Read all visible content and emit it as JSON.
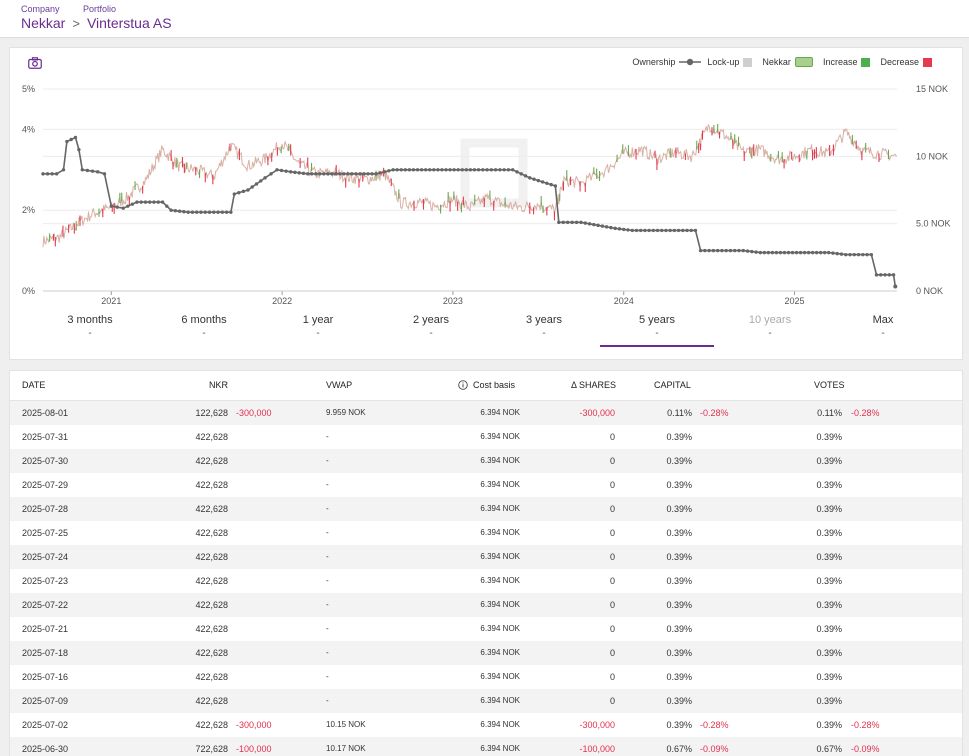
{
  "breadcrumb": {
    "company_label": "Company",
    "portfolio_label": "Portfolio",
    "company": "Nekkar",
    "separator": ">",
    "portfolio": "Vinterstua AS"
  },
  "legend": {
    "ownership": "Ownership",
    "lockup": "Lock-up",
    "nekkar": "Nekkar",
    "increase": "Increase",
    "decrease": "Decrease"
  },
  "colors": {
    "accent": "#6a2c91",
    "increase": "#4caf50",
    "decrease": "#e53950",
    "ownership_line": "#666666"
  },
  "chart_data": {
    "type": "line",
    "y_left": {
      "ticks": [
        "0%",
        "2%",
        "4%",
        "5%"
      ],
      "range": [
        0,
        5
      ]
    },
    "y_right": {
      "ticks": [
        "0 NOK",
        "5.0 NOK",
        "10 NOK",
        "15 NOK"
      ],
      "range": [
        0,
        15
      ]
    },
    "x_ticks": [
      "2021",
      "2022",
      "2023",
      "2024",
      "2025"
    ],
    "x_range": [
      2020.6,
      2025.6
    ],
    "grid": true,
    "series": [
      {
        "name": "Ownership",
        "axis": "left",
        "points": [
          [
            2020.6,
            2.9
          ],
          [
            2020.68,
            2.9
          ],
          [
            2020.72,
            3.0
          ],
          [
            2020.74,
            3.7
          ],
          [
            2020.79,
            3.8
          ],
          [
            2020.81,
            3.5
          ],
          [
            2020.83,
            3.0
          ],
          [
            2020.92,
            2.95
          ],
          [
            2020.96,
            2.9
          ],
          [
            2021.0,
            2.1
          ],
          [
            2021.07,
            2.05
          ],
          [
            2021.15,
            2.2
          ],
          [
            2021.3,
            2.2
          ],
          [
            2021.35,
            2.0
          ],
          [
            2021.45,
            1.95
          ],
          [
            2021.7,
            1.95
          ],
          [
            2021.72,
            2.4
          ],
          [
            2021.8,
            2.5
          ],
          [
            2021.9,
            2.8
          ],
          [
            2021.97,
            3.0
          ],
          [
            2022.05,
            2.95
          ],
          [
            2022.15,
            2.9
          ],
          [
            2022.55,
            2.9
          ],
          [
            2022.65,
            3.0
          ],
          [
            2023.15,
            3.0
          ],
          [
            2023.35,
            3.0
          ],
          [
            2023.45,
            2.8
          ],
          [
            2023.6,
            2.6
          ],
          [
            2023.62,
            1.7
          ],
          [
            2023.75,
            1.7
          ],
          [
            2023.95,
            1.55
          ],
          [
            2024.05,
            1.5
          ],
          [
            2024.42,
            1.5
          ],
          [
            2024.45,
            1.0
          ],
          [
            2024.7,
            1.0
          ],
          [
            2024.8,
            0.95
          ],
          [
            2025.2,
            0.95
          ],
          [
            2025.3,
            0.9
          ],
          [
            2025.45,
            0.9
          ],
          [
            2025.48,
            0.4
          ],
          [
            2025.58,
            0.4
          ],
          [
            2025.59,
            0.11
          ]
        ]
      },
      {
        "name": "Nekkar",
        "axis": "right",
        "points": [
          [
            2020.6,
            3.7
          ],
          [
            2020.7,
            4.0
          ],
          [
            2020.8,
            5.0
          ],
          [
            2020.9,
            5.8
          ],
          [
            2021.0,
            6.2
          ],
          [
            2021.1,
            7.0
          ],
          [
            2021.2,
            8.2
          ],
          [
            2021.3,
            10.5
          ],
          [
            2021.4,
            9.2
          ],
          [
            2021.5,
            9.0
          ],
          [
            2021.6,
            8.5
          ],
          [
            2021.7,
            10.8
          ],
          [
            2021.8,
            9.3
          ],
          [
            2021.9,
            9.8
          ],
          [
            2022.0,
            11.0
          ],
          [
            2022.1,
            9.4
          ],
          [
            2022.2,
            8.7
          ],
          [
            2022.3,
            8.8
          ],
          [
            2022.4,
            8.4
          ],
          [
            2022.5,
            8.3
          ],
          [
            2022.6,
            8.7
          ],
          [
            2022.7,
            6.5
          ],
          [
            2022.8,
            6.6
          ],
          [
            2022.9,
            6.3
          ],
          [
            2023.0,
            6.8
          ],
          [
            2023.1,
            6.2
          ],
          [
            2023.2,
            6.9
          ],
          [
            2023.3,
            6.4
          ],
          [
            2023.4,
            6.2
          ],
          [
            2023.5,
            6.4
          ],
          [
            2023.6,
            6.0
          ],
          [
            2023.65,
            8.2
          ],
          [
            2023.75,
            8.0
          ],
          [
            2023.9,
            9.0
          ],
          [
            2024.0,
            10.2
          ],
          [
            2024.1,
            10.5
          ],
          [
            2024.2,
            9.8
          ],
          [
            2024.3,
            10.3
          ],
          [
            2024.4,
            10.0
          ],
          [
            2024.5,
            12.3
          ],
          [
            2024.6,
            11.5
          ],
          [
            2024.7,
            10.3
          ],
          [
            2024.8,
            10.5
          ],
          [
            2024.9,
            9.8
          ],
          [
            2025.0,
            10.0
          ],
          [
            2025.1,
            10.5
          ],
          [
            2025.2,
            10.2
          ],
          [
            2025.3,
            11.8
          ],
          [
            2025.4,
            10.4
          ],
          [
            2025.5,
            10.2
          ],
          [
            2025.6,
            10.0
          ]
        ]
      }
    ]
  },
  "ranges": [
    {
      "label": "3 months",
      "value": "-",
      "active": false,
      "disabled": false
    },
    {
      "label": "6 months",
      "value": "-",
      "active": false,
      "disabled": false
    },
    {
      "label": "1 year",
      "value": "-",
      "active": false,
      "disabled": false
    },
    {
      "label": "2 years",
      "value": "-",
      "active": false,
      "disabled": false
    },
    {
      "label": "3 years",
      "value": "-",
      "active": false,
      "disabled": false
    },
    {
      "label": "5 years",
      "value": "-",
      "active": true,
      "disabled": false
    },
    {
      "label": "10 years",
      "value": "-",
      "active": false,
      "disabled": true
    },
    {
      "label": "Max",
      "value": "-",
      "active": false,
      "disabled": false
    }
  ],
  "table": {
    "headers": {
      "date": "DATE",
      "nkr": "NKR",
      "vwap": "VWAP",
      "cost_basis": "Cost basis",
      "delta_shares": "Δ SHARES",
      "capital": "CAPITAL",
      "votes": "VOTES"
    },
    "rows": [
      {
        "date": "2025-08-01",
        "nkr": "122,628",
        "nkr_change": "-300,000",
        "vwap": "9.959 NOK",
        "cost": "6.394 NOK",
        "delta": "-300,000",
        "capital": "0.11%",
        "capital_change": "-0.28%",
        "votes": "0.11%",
        "votes_change": "-0.28%"
      },
      {
        "date": "2025-07-31",
        "nkr": "422,628",
        "nkr_change": "",
        "vwap": "-",
        "cost": "6.394 NOK",
        "delta": "0",
        "capital": "0.39%",
        "capital_change": "",
        "votes": "0.39%",
        "votes_change": ""
      },
      {
        "date": "2025-07-30",
        "nkr": "422,628",
        "nkr_change": "",
        "vwap": "-",
        "cost": "6.394 NOK",
        "delta": "0",
        "capital": "0.39%",
        "capital_change": "",
        "votes": "0.39%",
        "votes_change": ""
      },
      {
        "date": "2025-07-29",
        "nkr": "422,628",
        "nkr_change": "",
        "vwap": "-",
        "cost": "6.394 NOK",
        "delta": "0",
        "capital": "0.39%",
        "capital_change": "",
        "votes": "0.39%",
        "votes_change": ""
      },
      {
        "date": "2025-07-28",
        "nkr": "422,628",
        "nkr_change": "",
        "vwap": "-",
        "cost": "6.394 NOK",
        "delta": "0",
        "capital": "0.39%",
        "capital_change": "",
        "votes": "0.39%",
        "votes_change": ""
      },
      {
        "date": "2025-07-25",
        "nkr": "422,628",
        "nkr_change": "",
        "vwap": "-",
        "cost": "6.394 NOK",
        "delta": "0",
        "capital": "0.39%",
        "capital_change": "",
        "votes": "0.39%",
        "votes_change": ""
      },
      {
        "date": "2025-07-24",
        "nkr": "422,628",
        "nkr_change": "",
        "vwap": "-",
        "cost": "6.394 NOK",
        "delta": "0",
        "capital": "0.39%",
        "capital_change": "",
        "votes": "0.39%",
        "votes_change": ""
      },
      {
        "date": "2025-07-23",
        "nkr": "422,628",
        "nkr_change": "",
        "vwap": "-",
        "cost": "6.394 NOK",
        "delta": "0",
        "capital": "0.39%",
        "capital_change": "",
        "votes": "0.39%",
        "votes_change": ""
      },
      {
        "date": "2025-07-22",
        "nkr": "422,628",
        "nkr_change": "",
        "vwap": "-",
        "cost": "6.394 NOK",
        "delta": "0",
        "capital": "0.39%",
        "capital_change": "",
        "votes": "0.39%",
        "votes_change": ""
      },
      {
        "date": "2025-07-21",
        "nkr": "422,628",
        "nkr_change": "",
        "vwap": "-",
        "cost": "6.394 NOK",
        "delta": "0",
        "capital": "0.39%",
        "capital_change": "",
        "votes": "0.39%",
        "votes_change": ""
      },
      {
        "date": "2025-07-18",
        "nkr": "422,628",
        "nkr_change": "",
        "vwap": "-",
        "cost": "6.394 NOK",
        "delta": "0",
        "capital": "0.39%",
        "capital_change": "",
        "votes": "0.39%",
        "votes_change": ""
      },
      {
        "date": "2025-07-16",
        "nkr": "422,628",
        "nkr_change": "",
        "vwap": "-",
        "cost": "6.394 NOK",
        "delta": "0",
        "capital": "0.39%",
        "capital_change": "",
        "votes": "0.39%",
        "votes_change": ""
      },
      {
        "date": "2025-07-09",
        "nkr": "422,628",
        "nkr_change": "",
        "vwap": "-",
        "cost": "6.394 NOK",
        "delta": "0",
        "capital": "0.39%",
        "capital_change": "",
        "votes": "0.39%",
        "votes_change": ""
      },
      {
        "date": "2025-07-02",
        "nkr": "422,628",
        "nkr_change": "-300,000",
        "vwap": "10.15 NOK",
        "cost": "6.394 NOK",
        "delta": "-300,000",
        "capital": "0.39%",
        "capital_change": "-0.28%",
        "votes": "0.39%",
        "votes_change": "-0.28%"
      },
      {
        "date": "2025-06-30",
        "nkr": "722,628",
        "nkr_change": "-100,000",
        "vwap": "10.17 NOK",
        "cost": "6.394 NOK",
        "delta": "-100,000",
        "capital": "0.67%",
        "capital_change": "-0.09%",
        "votes": "0.67%",
        "votes_change": "-0.09%"
      }
    ]
  }
}
